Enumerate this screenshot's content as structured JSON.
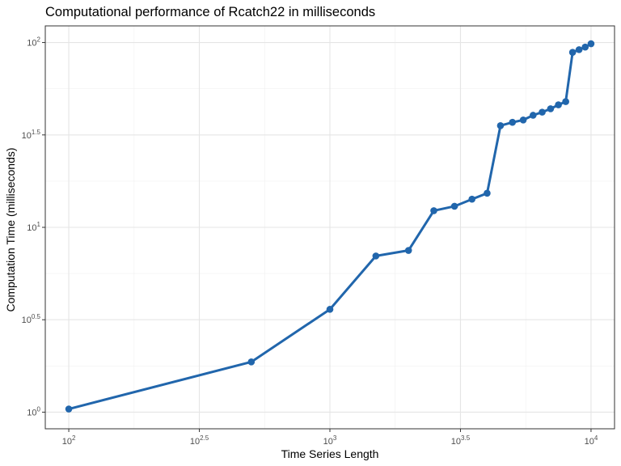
{
  "chart_data": {
    "type": "line",
    "title": "Computational performance of Rcatch22 in milliseconds",
    "xlabel": "Time Series Length",
    "ylabel": "Computation Time (milliseconds)",
    "x_scale": "log10",
    "y_scale": "log10",
    "xlim": [
      100,
      10000
    ],
    "ylim": [
      1,
      100
    ],
    "grid": true,
    "x_ticks": [
      {
        "base": "10",
        "exp": "2"
      },
      {
        "base": "10",
        "exp": "2.5"
      },
      {
        "base": "10",
        "exp": "3"
      },
      {
        "base": "10",
        "exp": "3.5"
      },
      {
        "base": "10",
        "exp": "4"
      }
    ],
    "y_ticks": [
      {
        "base": "10",
        "exp": "0"
      },
      {
        "base": "10",
        "exp": "0.5"
      },
      {
        "base": "10",
        "exp": "1"
      },
      {
        "base": "10",
        "exp": "1.5"
      },
      {
        "base": "10",
        "exp": "2"
      }
    ],
    "series": [
      {
        "color": "#2166ac",
        "x": [
          100,
          500,
          1000,
          1500,
          2000,
          2500,
          3000,
          3500,
          4000,
          4500,
          5000,
          5500,
          6000,
          6500,
          7000,
          7500,
          8000,
          8500,
          9000,
          9500,
          10000
        ],
        "y": [
          1.04,
          1.87,
          3.6,
          7.0,
          7.5,
          12.3,
          13.0,
          14.2,
          15.3,
          35.5,
          37.0,
          38.1,
          40.4,
          42.0,
          43.8,
          46.0,
          47.9,
          88.5,
          91.5,
          94.5,
          98.5
        ]
      }
    ]
  }
}
